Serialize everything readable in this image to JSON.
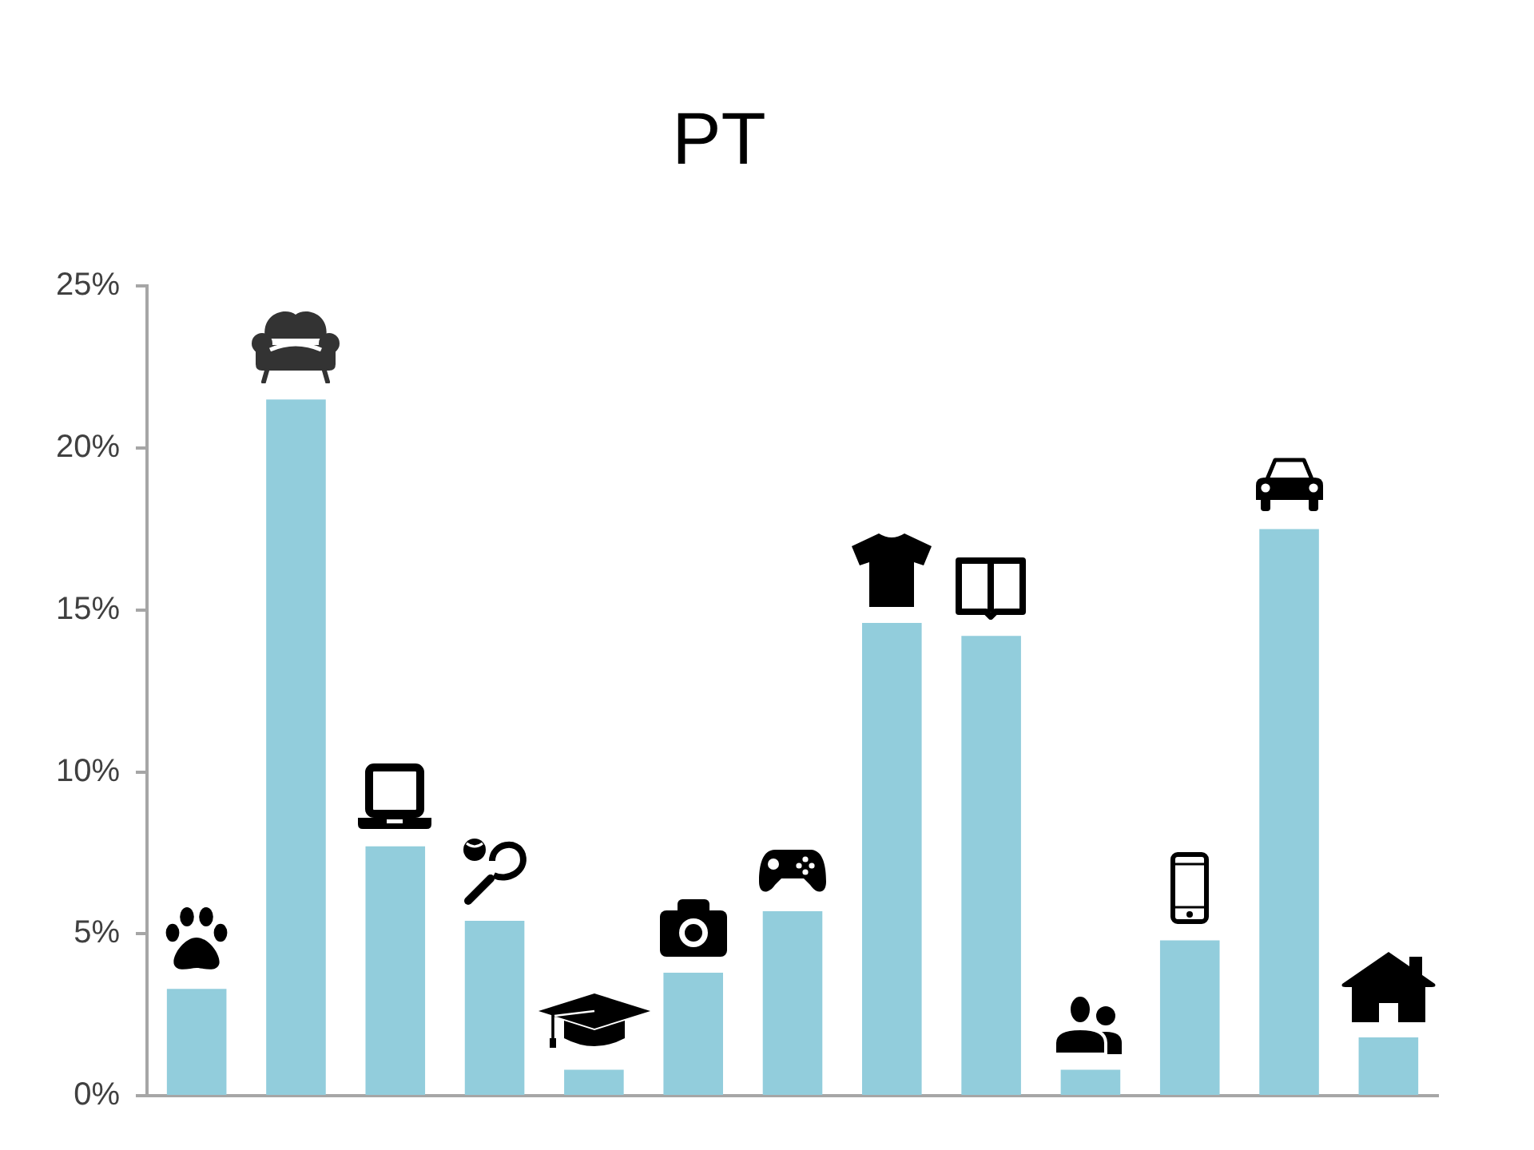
{
  "chart_data": {
    "type": "bar",
    "title": "PT",
    "categories": [
      null,
      null,
      null,
      null,
      null,
      null,
      null,
      null,
      null,
      null,
      null,
      null,
      null
    ],
    "values": [
      3.3,
      21.5,
      7.7,
      5.4,
      0.8,
      3.8,
      5.7,
      14.6,
      14.2,
      0.8,
      4.8,
      17.5,
      1.8
    ],
    "color": "#92cddc",
    "ylim": [
      0,
      25
    ],
    "yticks": [
      {
        "value": 0,
        "label": "0%"
      },
      {
        "value": 5,
        "label": "5%"
      },
      {
        "value": 10,
        "label": "10%"
      },
      {
        "value": 15,
        "label": "15%"
      },
      {
        "value": 20,
        "label": "20%"
      },
      {
        "value": 25,
        "label": "25%"
      }
    ],
    "tick_labels": "y",
    "grid": false,
    "legend": false
  }
}
